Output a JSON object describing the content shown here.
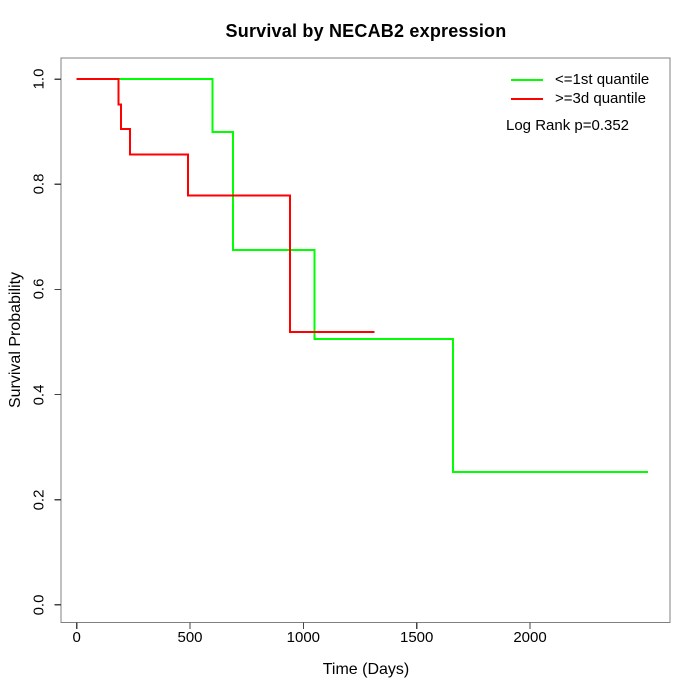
{
  "chart_data": {
    "type": "line",
    "subtype": "kaplan-meier-step-curves",
    "title": "Survival by NECAB2 expression",
    "xlabel": "Time (Days)",
    "ylabel": "Survival Probability",
    "annotation": "Log Rank p=0.352",
    "grid": false,
    "legend_position": "top-right",
    "x_axis": {
      "ticks": [
        0,
        500,
        1000,
        1500,
        2000
      ],
      "tick_labels": [
        "0",
        "500",
        "1000",
        "1500",
        "2000"
      ],
      "range_shown": [
        0,
        2620
      ]
    },
    "y_axis": {
      "ticks": [
        0.0,
        0.2,
        0.4,
        0.6,
        0.8,
        1.0
      ],
      "tick_labels": [
        "0.0",
        "0.2",
        "0.4",
        "0.6",
        "0.8",
        "1.0"
      ],
      "range_shown": [
        0,
        1
      ]
    },
    "series": [
      {
        "name": "<=1st quantile",
        "color": "#00ff00",
        "steps": [
          [
            0,
            1.0
          ],
          [
            600,
            0.9
          ],
          [
            690,
            0.675
          ],
          [
            1050,
            0.506
          ],
          [
            1660,
            0.253
          ]
        ],
        "end_time": 2520
      },
      {
        "name": ">=3d quantile",
        "color": "#ff0000",
        "steps": [
          [
            0,
            1.0
          ],
          [
            185,
            0.952
          ],
          [
            195,
            0.905
          ],
          [
            235,
            0.857
          ],
          [
            490,
            0.779
          ],
          [
            940,
            0.519
          ]
        ],
        "end_time": 1315
      }
    ],
    "axis_color": "#444444",
    "box_color": "#808080",
    "text_color": "#000000"
  }
}
